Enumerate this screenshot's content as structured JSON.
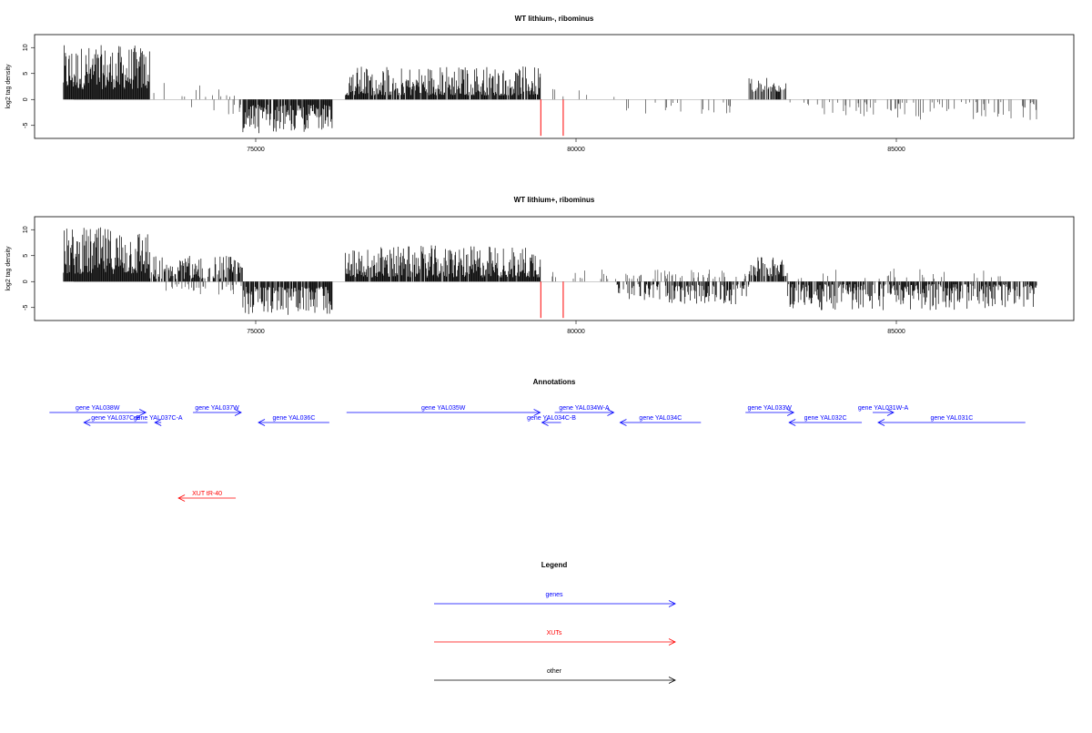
{
  "chart_data": [
    {
      "type": "bar",
      "title": "WT lithium-, ribominus",
      "ylabel": "log2 tag density",
      "xlabel": "",
      "xlim": [
        71600,
        87600
      ],
      "ylim": [
        -7.5,
        12.5
      ],
      "xticks": [
        75000,
        80000,
        85000
      ],
      "yticks": [
        -5,
        0,
        5,
        10
      ],
      "regions": [
        {
          "start": 72000,
          "end": 73350,
          "sign": 1,
          "min": 2,
          "max": 10.5,
          "density": 1.0
        },
        {
          "start": 73400,
          "end": 73700,
          "sign": 1,
          "min": 1,
          "max": 3.2,
          "density": 0.05
        },
        {
          "start": 73800,
          "end": 74800,
          "sign": 1,
          "min": 0.5,
          "max": 3,
          "density": 0.08
        },
        {
          "start": 74000,
          "end": 74800,
          "sign": -1,
          "min": 0.5,
          "max": 3,
          "density": 0.05
        },
        {
          "start": 74800,
          "end": 76200,
          "sign": -1,
          "min": 1,
          "max": 6.5,
          "density": 0.9
        },
        {
          "start": 76400,
          "end": 79450,
          "sign": 1,
          "min": 0.8,
          "max": 6.5,
          "density": 0.9
        },
        {
          "start": 79500,
          "end": 80600,
          "sign": 1,
          "min": 0.5,
          "max": 3,
          "density": 0.04
        },
        {
          "start": 80600,
          "end": 82700,
          "sign": -1,
          "min": 0.5,
          "max": 3,
          "density": 0.08
        },
        {
          "start": 82700,
          "end": 83300,
          "sign": 1,
          "min": 1.5,
          "max": 4.2,
          "density": 0.6
        },
        {
          "start": 83300,
          "end": 87200,
          "sign": -1,
          "min": 0.5,
          "max": 4,
          "density": 0.2
        }
      ],
      "highlight_values": [
        {
          "x": 79450,
          "y": -7
        },
        {
          "x": 79800,
          "y": -7
        }
      ]
    },
    {
      "type": "bar",
      "title": "WT lithium+, ribominus",
      "ylabel": "log2 tag density",
      "xlabel": "",
      "xlim": [
        71600,
        87600
      ],
      "ylim": [
        -7.5,
        12.5
      ],
      "xticks": [
        75000,
        80000,
        85000
      ],
      "yticks": [
        -5,
        0,
        5,
        10
      ],
      "regions": [
        {
          "start": 72000,
          "end": 73350,
          "sign": 1,
          "min": 1.5,
          "max": 10.5,
          "density": 1.0
        },
        {
          "start": 73350,
          "end": 74800,
          "sign": 1,
          "min": 0.5,
          "max": 5,
          "density": 0.8
        },
        {
          "start": 73500,
          "end": 74800,
          "sign": -1,
          "min": 0.5,
          "max": 2.5,
          "density": 0.2
        },
        {
          "start": 74800,
          "end": 76200,
          "sign": -1,
          "min": 1,
          "max": 6.5,
          "density": 0.9
        },
        {
          "start": 76400,
          "end": 79450,
          "sign": 1,
          "min": 0.8,
          "max": 7,
          "density": 0.95
        },
        {
          "start": 79500,
          "end": 80600,
          "sign": 1,
          "min": 0.5,
          "max": 2.5,
          "density": 0.1
        },
        {
          "start": 80600,
          "end": 82700,
          "sign": -1,
          "min": 0.5,
          "max": 4.5,
          "density": 0.6
        },
        {
          "start": 80600,
          "end": 82700,
          "sign": 1,
          "min": 0.5,
          "max": 2.5,
          "density": 0.2
        },
        {
          "start": 82700,
          "end": 83300,
          "sign": 1,
          "min": 1,
          "max": 5,
          "density": 0.8
        },
        {
          "start": 83300,
          "end": 87200,
          "sign": -1,
          "min": 0.5,
          "max": 5.5,
          "density": 0.75
        },
        {
          "start": 83300,
          "end": 87200,
          "sign": 1,
          "min": 0.5,
          "max": 2.5,
          "density": 0.06
        }
      ],
      "highlight_values": [
        {
          "x": 79450,
          "y": -7
        },
        {
          "x": 79800,
          "y": -7
        }
      ]
    }
  ],
  "annotations": {
    "title": "Annotations",
    "features": [
      {
        "label": "gene YAL038W",
        "start": 71780,
        "end": 73284,
        "strand": "+",
        "row": 0,
        "kind": "gene"
      },
      {
        "label": "gene YAL037C-B",
        "start": 72319,
        "end": 73312,
        "strand": "-",
        "row": 1,
        "kind": "gene"
      },
      {
        "label": "gene YAL037C-A",
        "start": 73426,
        "end": 73525,
        "strand": "-",
        "row": 1,
        "kind": "gene"
      },
      {
        "label": "gene YAL037W",
        "start": 74021,
        "end": 74773,
        "strand": "+",
        "row": 0,
        "kind": "gene"
      },
      {
        "label": "gene YAL036C",
        "start": 75043,
        "end": 76149,
        "strand": "-",
        "row": 1,
        "kind": "gene"
      },
      {
        "label": "gene YAL035W",
        "start": 76418,
        "end": 79440,
        "strand": "+",
        "row": 0,
        "kind": "gene"
      },
      {
        "label": "gene YAL034C-B",
        "start": 79468,
        "end": 79766,
        "strand": "-",
        "row": 1,
        "kind": "gene"
      },
      {
        "label": "gene YAL034W-A",
        "start": 79667,
        "end": 80589,
        "strand": "+",
        "row": 0,
        "kind": "gene"
      },
      {
        "label": "gene YAL034C",
        "start": 80688,
        "end": 81950,
        "strand": "-",
        "row": 1,
        "kind": "gene"
      },
      {
        "label": "gene YAL033W",
        "start": 82645,
        "end": 83397,
        "strand": "+",
        "row": 0,
        "kind": "gene"
      },
      {
        "label": "gene YAL032C",
        "start": 83326,
        "end": 84461,
        "strand": "-",
        "row": 1,
        "kind": "gene"
      },
      {
        "label": "gene YAL031W-A",
        "start": 84631,
        "end": 84957,
        "strand": "+",
        "row": 0,
        "kind": "gene"
      },
      {
        "label": "gene YAL031C",
        "start": 84716,
        "end": 87014,
        "strand": "-",
        "row": 1,
        "kind": "gene"
      },
      {
        "label": "XUT tR-40",
        "start": 73794,
        "end": 74688,
        "strand": "-",
        "row": 2,
        "kind": "xut"
      }
    ]
  },
  "legend": {
    "title": "Legend",
    "items": [
      {
        "label": "genes",
        "color": "#0000ff"
      },
      {
        "label": "XUTs",
        "color": "#ff0000"
      },
      {
        "label": "other",
        "color": "#000000"
      }
    ]
  },
  "colors": {
    "gene": "#0000ff",
    "xut": "#ff0000",
    "bar": "#000000",
    "highlight": "#ff0000"
  }
}
